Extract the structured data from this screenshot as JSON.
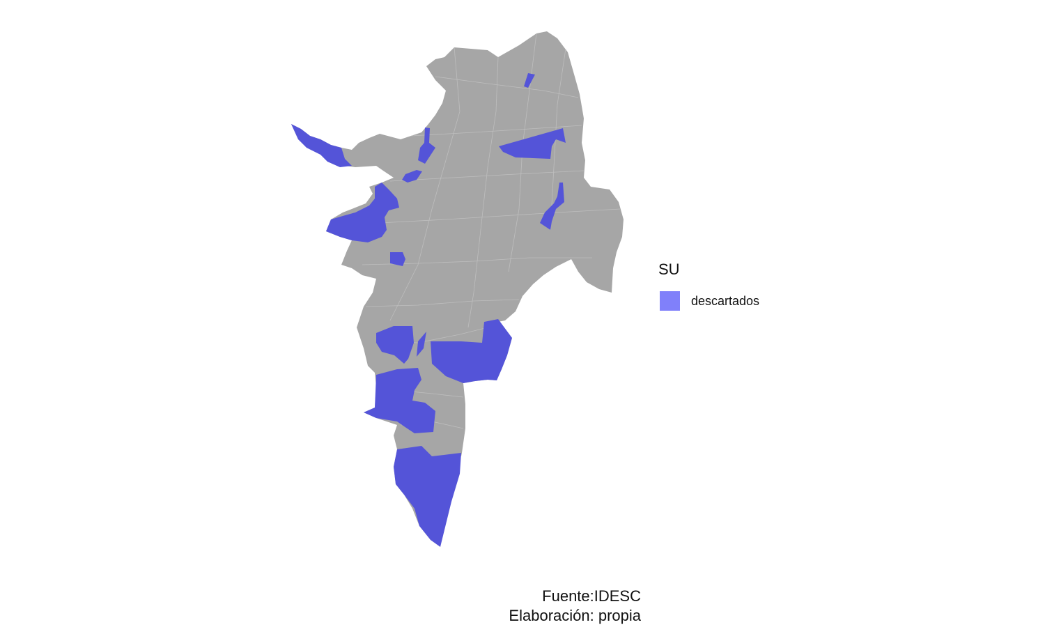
{
  "legend": {
    "title": "SU",
    "items": [
      {
        "label": "descartados",
        "color": "#8080fa"
      }
    ]
  },
  "caption": {
    "source": "Fuente:IDESC",
    "author": "Elaboración: propia"
  },
  "map": {
    "base_color": "#a6a6a6",
    "border_color": "#c4c4c4",
    "highlight_color": "#5454d8"
  }
}
